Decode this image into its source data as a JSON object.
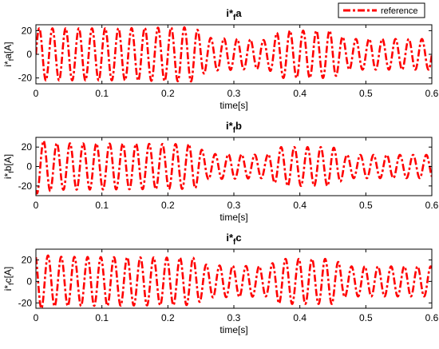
{
  "legend": {
    "label": "reference",
    "color": "#ff0000"
  },
  "chart_data": [
    {
      "type": "line",
      "title": {
        "base": "i*",
        "sub": "f",
        "suffix": "a"
      },
      "xlabel": "time[s]",
      "ylabel": {
        "base": "i*",
        "sub": "f",
        "suffix": "a[A]"
      },
      "xlim": [
        0,
        0.6
      ],
      "ylim": [
        -25,
        25
      ],
      "xticks": [
        0,
        0.1,
        0.2,
        0.3,
        0.4,
        0.5,
        0.6
      ],
      "xtick_labels": [
        "0",
        "0.1",
        "0.2",
        "0.3",
        "0.4",
        "0.5",
        "0.6"
      ],
      "yticks": [
        20,
        0,
        -20
      ],
      "ytick_labels": [
        "20",
        "0",
        "-20"
      ],
      "grid": false,
      "line_style": "dash-dot",
      "color": "#ff0000",
      "series": [
        {
          "frequency_hz": 50,
          "phase_deg": 0,
          "amplitude_envelope": [
            [
              0.0,
              22
            ],
            [
              0.12,
              22
            ],
            [
              0.24,
              23
            ],
            [
              0.26,
              14
            ],
            [
              0.35,
              12
            ],
            [
              0.37,
              20
            ],
            [
              0.45,
              20
            ],
            [
              0.47,
              13
            ],
            [
              0.6,
              13
            ]
          ]
        }
      ]
    },
    {
      "type": "line",
      "title": {
        "base": "i*",
        "sub": "f",
        "suffix": "b"
      },
      "xlabel": "time[s]",
      "ylabel": {
        "base": "i*",
        "sub": "f",
        "suffix": "b[A]"
      },
      "xlim": [
        0,
        0.6
      ],
      "ylim": [
        -30,
        30
      ],
      "xticks": [
        0,
        0.1,
        0.2,
        0.3,
        0.4,
        0.5,
        0.6
      ],
      "xtick_labels": [
        "0",
        "0.1",
        "0.2",
        "0.3",
        "0.4",
        "0.5",
        "0.6"
      ],
      "yticks": [
        20,
        0,
        -20
      ],
      "ytick_labels": [
        "20",
        "0",
        "-20"
      ],
      "grid": false,
      "line_style": "dash-dot",
      "color": "#ff0000",
      "series": [
        {
          "frequency_hz": 50,
          "phase_deg": 240,
          "amplitude_envelope": [
            [
              0.0,
              28
            ],
            [
              0.03,
              24
            ],
            [
              0.24,
              23
            ],
            [
              0.26,
              13
            ],
            [
              0.35,
              12
            ],
            [
              0.37,
              20
            ],
            [
              0.45,
              20
            ],
            [
              0.47,
              12
            ],
            [
              0.6,
              12
            ]
          ]
        }
      ]
    },
    {
      "type": "line",
      "title": {
        "base": "i*",
        "sub": "f",
        "suffix": "c"
      },
      "xlabel": "time[s]",
      "ylabel": {
        "base": "i*",
        "sub": "f",
        "suffix": "c[A]"
      },
      "xlim": [
        0,
        0.6
      ],
      "ylim": [
        -25,
        30
      ],
      "xticks": [
        0,
        0.1,
        0.2,
        0.3,
        0.4,
        0.5,
        0.6
      ],
      "xtick_labels": [
        "0",
        "0.1",
        "0.2",
        "0.3",
        "0.4",
        "0.5",
        "0.6"
      ],
      "yticks": [
        20,
        0,
        -20
      ],
      "ytick_labels": [
        "20",
        "0",
        "-20"
      ],
      "grid": false,
      "line_style": "dash-dot",
      "color": "#ff0000",
      "series": [
        {
          "frequency_hz": 50,
          "phase_deg": 120,
          "amplitude_envelope": [
            [
              0.0,
              26
            ],
            [
              0.03,
              23
            ],
            [
              0.24,
              22
            ],
            [
              0.26,
              15
            ],
            [
              0.35,
              14
            ],
            [
              0.37,
              21
            ],
            [
              0.45,
              21
            ],
            [
              0.47,
              14
            ],
            [
              0.6,
              14
            ]
          ]
        }
      ]
    }
  ]
}
